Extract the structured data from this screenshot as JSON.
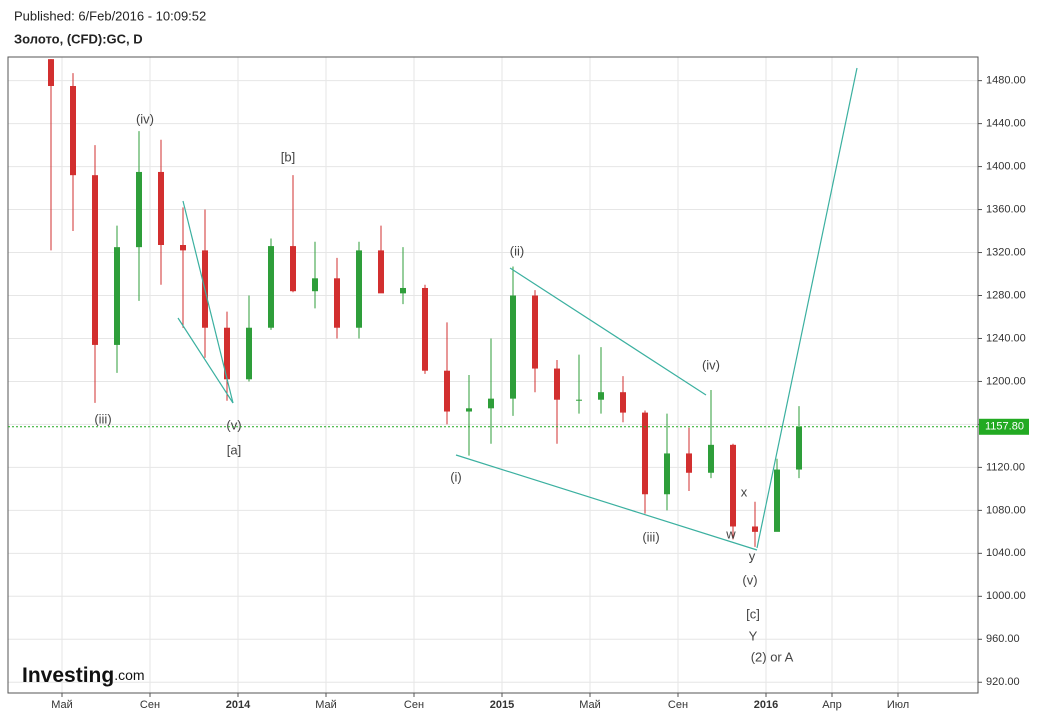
{
  "header": {
    "published": "Published: 6/Feb/2016 - 10:09:52",
    "instrument": "Золото, (CFD):GC, D"
  },
  "logo": {
    "brand": "Investing",
    "suffix": ".com"
  },
  "chart_data": {
    "type": "candlestick",
    "categories": [
      null,
      "Май",
      null,
      null,
      null,
      "Сен",
      null,
      null,
      null,
      "2014",
      null,
      null,
      null,
      "Май",
      null,
      null,
      null,
      "Сен",
      null,
      null,
      null,
      "2015",
      null,
      null,
      null,
      "Май",
      null,
      null,
      null,
      "Сен",
      null,
      null,
      null,
      "2016",
      null,
      null,
      "Апр",
      null,
      null,
      "Июл"
    ],
    "open": [
      1500,
      1475,
      1392,
      1234,
      1325,
      1395,
      1327,
      1322,
      1250,
      1202,
      1250,
      1326,
      1284,
      1296,
      1250,
      1322,
      1282,
      1287,
      1210,
      1172,
      1175,
      1184,
      1280,
      1212,
      1183,
      1183,
      1190,
      1171,
      1095,
      1133,
      1115,
      1141,
      1065,
      1060,
      1118,
      null,
      null,
      null,
      null,
      null
    ],
    "high": [
      1500,
      1487,
      1420,
      1345,
      1433,
      1425,
      1362,
      1360,
      1265,
      1280,
      1333,
      1392,
      1330,
      1315,
      1330,
      1345,
      1325,
      1290,
      1255,
      1206,
      1240,
      1307,
      1285,
      1220,
      1225,
      1232,
      1205,
      1173,
      1170,
      1157,
      1192,
      1142,
      1088,
      1128,
      1177,
      null,
      null,
      null,
      null,
      null
    ],
    "low": [
      1322,
      1340,
      1180,
      1208,
      1275,
      1290,
      1250,
      1222,
      1182,
      1200,
      1248,
      1283,
      1268,
      1240,
      1240,
      1283,
      1272,
      1207,
      1160,
      1131,
      1142,
      1168,
      1190,
      1142,
      1170,
      1170,
      1162,
      1077,
      1080,
      1098,
      1110,
      1053,
      1046,
      1062,
      1110,
      null,
      null,
      null,
      null,
      null
    ],
    "close": [
      1475,
      1392,
      1234,
      1325,
      1395,
      1327,
      1322,
      1250,
      1202,
      1250,
      1326,
      1284,
      1296,
      1250,
      1322,
      1282,
      1287,
      1210,
      1172,
      1175,
      1184,
      1280,
      1212,
      1183,
      1183,
      1190,
      1171,
      1095,
      1133,
      1115,
      1141,
      1065,
      1060,
      1118,
      1157.8,
      null,
      null,
      null,
      null,
      null
    ],
    "up_color": "#2e9e3a",
    "down_color": "#d22f2f",
    "ylim": [
      910,
      1502
    ],
    "yticks": [
      {
        "value": 920,
        "label": "920.00"
      },
      {
        "value": 960,
        "label": "960.00"
      },
      {
        "value": 1000,
        "label": "1000.00"
      },
      {
        "value": 1040,
        "label": "1040.00"
      },
      {
        "value": 1080,
        "label": "1080.00"
      },
      {
        "value": 1120,
        "label": "1120.00"
      },
      {
        "value": 1160,
        "label": "1160.00"
      },
      {
        "value": 1200,
        "label": "1200.00"
      },
      {
        "value": 1240,
        "label": "1240.00"
      },
      {
        "value": 1280,
        "label": "1280.00"
      },
      {
        "value": 1320,
        "label": "1320.00"
      },
      {
        "value": 1360,
        "label": "1360.00"
      },
      {
        "value": 1400,
        "label": "1400.00"
      },
      {
        "value": 1440,
        "label": "1440.00"
      },
      {
        "value": 1480,
        "label": "1480.00"
      }
    ],
    "current_price": {
      "value": 1157.8,
      "label": "1157.80"
    },
    "current_color": "#22aa22",
    "grid": true,
    "annotations": [
      "(iii)",
      "(iv)",
      "(v)",
      "[a]",
      "[b]",
      "(i)",
      "(ii)",
      "(iii)",
      "(iv)",
      "x",
      "w",
      "y",
      "(v)",
      "[c]",
      "Y",
      "(2) or A"
    ]
  }
}
